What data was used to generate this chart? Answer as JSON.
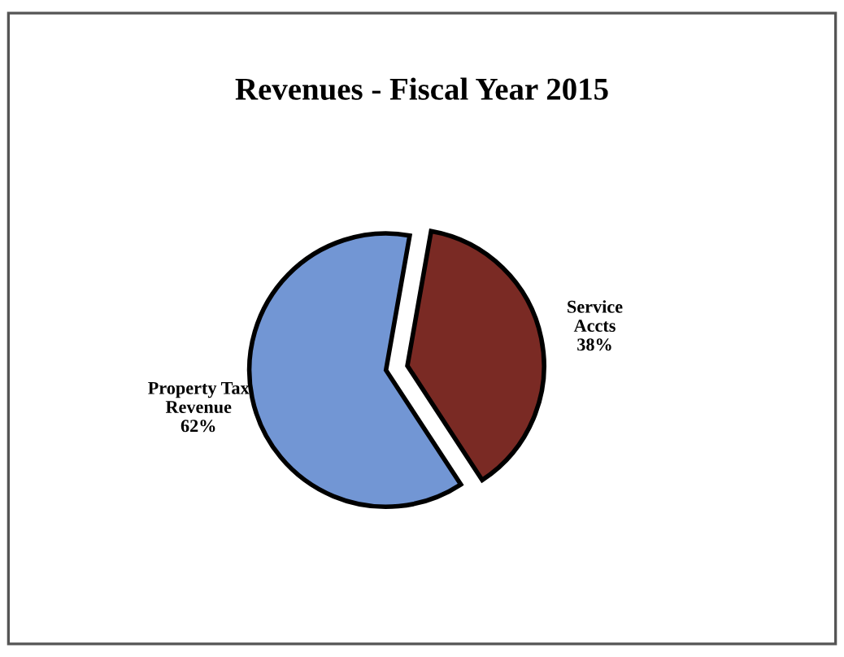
{
  "chart_data": {
    "type": "pie",
    "title": "Revenues - Fiscal Year 2015",
    "categories": [
      "Property Tax\nRevenue",
      "Service\nAccts"
    ],
    "values": [
      62,
      38
    ],
    "value_labels": [
      "62%",
      "38%"
    ],
    "colors": [
      "#7296d4",
      "#7a2a24"
    ],
    "legend": false
  }
}
